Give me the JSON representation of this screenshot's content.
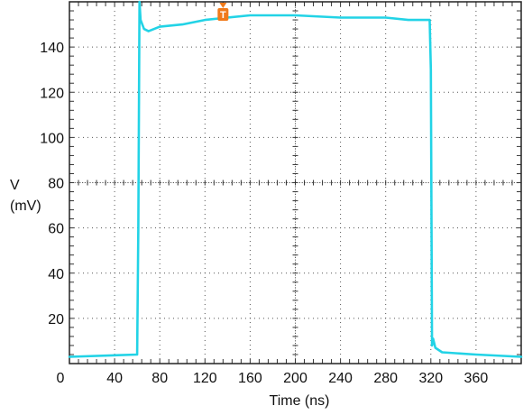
{
  "chart_data": {
    "type": "line",
    "xlabel": "Time (ns)",
    "ylabel_line1": "V",
    "ylabel_line2": "(mV)",
    "xlim": [
      0,
      400
    ],
    "ylim": [
      0,
      160
    ],
    "x_ticks": [
      0,
      40,
      80,
      120,
      160,
      200,
      240,
      280,
      320,
      360
    ],
    "y_ticks": [
      20,
      40,
      60,
      80,
      100,
      120,
      140
    ],
    "grid": true,
    "series": [
      {
        "color": "#22d3e6",
        "x": [
          0,
          60,
          61,
          62,
          63,
          66,
          70,
          80,
          100,
          120,
          140,
          160,
          200,
          240,
          280,
          300,
          319,
          320,
          321,
          322,
          324,
          330,
          360,
          400
        ],
        "y": [
          3,
          4,
          60,
          160,
          152,
          148,
          147,
          149,
          150,
          152,
          153,
          154,
          154,
          153,
          153,
          152,
          152,
          130,
          8,
          11,
          7,
          5,
          4,
          3
        ]
      }
    ],
    "trigger_marker": {
      "x": 136,
      "label": "T",
      "color": "#f07a1a"
    }
  }
}
